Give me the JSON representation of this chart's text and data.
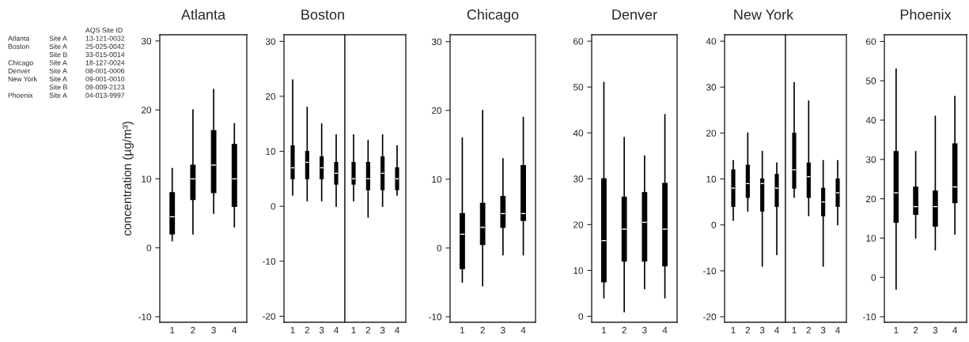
{
  "chart_data": [
    {
      "type": "box",
      "title": "Atlanta",
      "ylabel": "concentration (µg/m³)",
      "categories": [
        "1",
        "2",
        "3",
        "4"
      ],
      "ylim": [
        -10.8,
        30.9
      ],
      "yticks": [
        -10,
        0,
        10,
        20,
        30
      ],
      "annotations": [
        "\t\tAQS Site ID",
        "Atlanta\tSite A\t13-121-0032",
        "Boston\tSite A\t25-025-0042",
        "\tSite B\t33-015-0014",
        "Chicago\tSite A\t18-127-0024",
        "Denver\tSite A\t08-001-0006",
        "New York\tSite A\t09-001-0010",
        "\tSite B\t09-009-2123",
        "Phoenix\tSite A\t04-013-9997"
      ],
      "series": [
        {
          "color": "#000000",
          "boxes": [
            {
              "low": 1,
              "q1": 2,
              "median": 4.5,
              "q3": 8,
              "high": 11.5
            },
            {
              "low": 2,
              "q1": 7,
              "median": 10,
              "q3": 12,
              "high": 20
            },
            {
              "low": 5,
              "q1": 8,
              "median": 12,
              "q3": 17,
              "high": 23
            },
            {
              "low": 3,
              "q1": 6,
              "median": 10,
              "q3": 15,
              "high": 18
            }
          ]
        }
      ]
    },
    {
      "type": "box",
      "title": "Boston",
      "categories": [
        "1",
        "2",
        "3",
        "4"
      ],
      "ylim": [
        -21.1,
        31.2
      ],
      "yticks": [
        -20,
        -10,
        0,
        10,
        20,
        30
      ],
      "series": [
        {
          "color": "#000000",
          "boxes": [
            {
              "low": 2,
              "q1": 5,
              "median": 7,
              "q3": 11,
              "high": 23
            },
            {
              "low": 1,
              "q1": 5,
              "median": 8,
              "q3": 10,
              "high": 18
            },
            {
              "low": 1,
              "q1": 5,
              "median": 7,
              "q3": 9,
              "high": 15
            },
            {
              "low": 0,
              "q1": 4,
              "median": 6,
              "q3": 8,
              "high": 13
            }
          ]
        }
      ]
    },
    {
      "type": "box",
      "categories": [
        "1",
        "2",
        "3",
        "4"
      ],
      "ylim": [
        -21.1,
        31.2
      ],
      "tick_labels": "x",
      "series": [
        {
          "color": "#000000",
          "boxes": [
            {
              "low": 1,
              "q1": 4,
              "median": 5,
              "q3": 8,
              "high": 13
            },
            {
              "low": -2,
              "q1": 3,
              "median": 5,
              "q3": 8,
              "high": 12
            },
            {
              "low": 0,
              "q1": 3,
              "median": 6,
              "q3": 9,
              "high": 13
            },
            {
              "low": 2,
              "q1": 3,
              "median": 5,
              "q3": 7,
              "high": 11
            }
          ]
        }
      ]
    },
    {
      "type": "box",
      "title": "Chicago",
      "categories": [
        "1",
        "2",
        "3",
        "4"
      ],
      "ylim": [
        -10.8,
        31.0
      ],
      "yticks": [
        -10,
        0,
        10,
        20,
        30
      ],
      "series": [
        {
          "color": "#000000",
          "boxes": [
            {
              "low": -5,
              "q1": -3,
              "median": 2,
              "q3": 5,
              "high": 16
            },
            {
              "low": -5.5,
              "q1": 0.5,
              "median": 3,
              "q3": 6.5,
              "high": 20
            },
            {
              "low": -1,
              "q1": 3,
              "median": 5,
              "q3": 7.5,
              "high": 13
            },
            {
              "low": -1,
              "q1": 4,
              "median": 5,
              "q3": 12,
              "high": 19
            }
          ]
        }
      ]
    },
    {
      "type": "box",
      "title": "Denver",
      "categories": [
        "1",
        "2",
        "3",
        "4"
      ],
      "ylim": [
        -1.3,
        61.4
      ],
      "yticks": [
        0,
        10,
        20,
        30,
        40,
        50,
        60
      ],
      "series": [
        {
          "color": "#000000",
          "boxes": [
            {
              "low": 4,
              "q1": 7.5,
              "median": 16.5,
              "q3": 30,
              "high": 51
            },
            {
              "low": 1,
              "q1": 12,
              "median": 19,
              "q3": 26,
              "high": 39
            },
            {
              "low": 6,
              "q1": 12,
              "median": 20.5,
              "q3": 27,
              "high": 35
            },
            {
              "low": 4,
              "q1": 11,
              "median": 19,
              "q3": 29,
              "high": 44
            }
          ]
        }
      ]
    },
    {
      "type": "box",
      "title": "New York",
      "categories": [
        "1",
        "2",
        "3",
        "4"
      ],
      "ylim": [
        -21.2,
        41.4
      ],
      "yticks": [
        -20,
        -10,
        0,
        10,
        20,
        30,
        40
      ],
      "series": [
        {
          "color": "#000000",
          "boxes": [
            {
              "low": 1,
              "q1": 4,
              "median": 8,
              "q3": 12,
              "high": 14
            },
            {
              "low": 3,
              "q1": 6,
              "median": 9,
              "q3": 13,
              "high": 20
            },
            {
              "low": -9,
              "q1": 3,
              "median": 9,
              "q3": 10,
              "high": 16
            },
            {
              "low": -6.5,
              "q1": 4,
              "median": 8,
              "q3": 11,
              "high": 13.5
            }
          ]
        }
      ]
    },
    {
      "type": "box",
      "categories": [
        "1",
        "2",
        "3",
        "4"
      ],
      "ylim": [
        -21.2,
        41.4
      ],
      "tick_labels": "x",
      "series": [
        {
          "color": "#000000",
          "boxes": [
            {
              "low": 6,
              "q1": 8,
              "median": 12,
              "q3": 20,
              "high": 31
            },
            {
              "low": 2,
              "q1": 6,
              "median": 10.5,
              "q3": 13.5,
              "high": 27
            },
            {
              "low": -9,
              "q1": 2,
              "median": 5,
              "q3": 8,
              "high": 14
            },
            {
              "low": 0,
              "q1": 4,
              "median": 7,
              "q3": 10,
              "high": 14
            }
          ]
        }
      ]
    },
    {
      "type": "box",
      "title": "Phoenix",
      "categories": [
        "1",
        "2",
        "3",
        "4"
      ],
      "ylim": [
        -11.4,
        61.7
      ],
      "yticks": [
        -10,
        0,
        10,
        20,
        30,
        40,
        50,
        60
      ],
      "series": [
        {
          "color": "#000000",
          "boxes": [
            {
              "low": -3,
              "q1": 14,
              "median": 21.5,
              "q3": 32,
              "high": 53
            },
            {
              "low": 10,
              "q1": 16,
              "median": 18,
              "q3": 23,
              "high": 32
            },
            {
              "low": 7,
              "q1": 13,
              "median": 18,
              "q3": 22,
              "high": 41
            },
            {
              "low": 11,
              "q1": 19,
              "median": 23,
              "q3": 34,
              "high": 46
            }
          ]
        }
      ]
    }
  ]
}
